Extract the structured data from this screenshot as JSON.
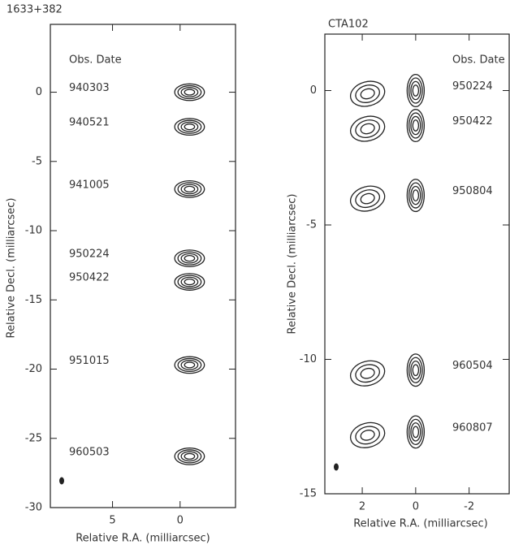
{
  "chart_data": [
    {
      "type": "contour",
      "title": "1633+382",
      "xlabel": "Relative R.A. (milliarcsec)",
      "ylabel": "Relative Decl. (milliarcsec)",
      "legend_title": "Obs. Date",
      "categories": [
        "940303",
        "940521",
        "941005",
        "950224",
        "950422",
        "951015",
        "960503"
      ],
      "values": [
        0,
        -2.5,
        -7,
        -12,
        -13.7,
        -19.7,
        -26.3
      ],
      "xlim": [
        9.6,
        -4.1
      ],
      "xticks": [
        5,
        0
      ],
      "ylim": [
        -30,
        4.9
      ],
      "yticks": [
        0,
        -5,
        -10,
        -15,
        -20,
        -25,
        -30
      ]
    },
    {
      "type": "contour",
      "title": "CTA102",
      "xlabel": "Relative R.A. (milliarcsec)",
      "ylabel": "Relative Decl. (milliarcsec)",
      "legend_title": "Obs. Date",
      "categories": [
        "950224",
        "950422",
        "950804",
        "960504",
        "960807"
      ],
      "values": [
        0,
        -1.3,
        -3.9,
        -10.4,
        -12.7
      ],
      "xlim": [
        3.4,
        -3.5
      ],
      "xticks": [
        2,
        0,
        -2
      ],
      "ylim": [
        -15,
        2.1
      ],
      "yticks": [
        0,
        -5,
        -10,
        -15
      ]
    }
  ]
}
